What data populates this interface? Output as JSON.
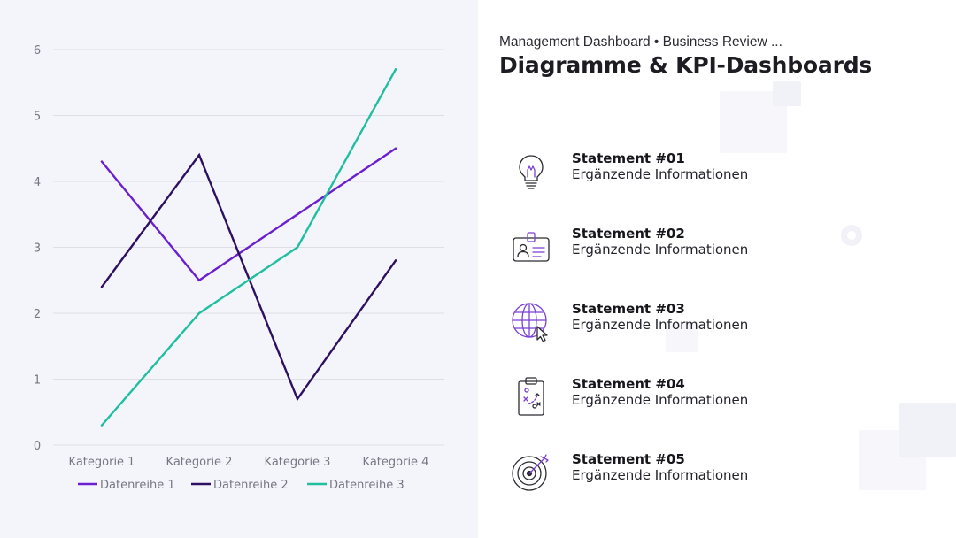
{
  "header": {
    "subtitle": "Management Dashboard • Business Review ...",
    "title": "Diagramme & KPI-Dashboards"
  },
  "statements": [
    {
      "title": "Statement #01",
      "description": "Ergänzende Informationen",
      "icon": "lightbulb-icon"
    },
    {
      "title": "Statement #02",
      "description": "Ergänzende Informationen",
      "icon": "id-card-icon"
    },
    {
      "title": "Statement #03",
      "description": "Ergänzende Informationen",
      "icon": "globe-cursor-icon"
    },
    {
      "title": "Statement #04",
      "description": "Ergänzende Informationen",
      "icon": "clipboard-strategy-icon"
    },
    {
      "title": "Statement #05",
      "description": "Ergänzende Informationen",
      "icon": "target-icon"
    }
  ],
  "colors": {
    "series1": "#6a1fd0",
    "series2": "#2e1060",
    "series3": "#1fbf9f",
    "left_panel_bg": "#f4f4fb",
    "icon_accent": "#7a3fd6",
    "icon_stroke": "#2a2a32"
  },
  "chart_data": {
    "type": "line",
    "categories": [
      "Kategorie 1",
      "Kategorie 2",
      "Kategorie 3",
      "Kategorie 4"
    ],
    "series": [
      {
        "name": "Datenreihe 1",
        "values": [
          4.3,
          2.5,
          3.5,
          4.5
        ]
      },
      {
        "name": "Datenreihe 2",
        "values": [
          2.4,
          4.4,
          0.7,
          2.8
        ]
      },
      {
        "name": "Datenreihe 3",
        "values": [
          0.3,
          2.0,
          3.0,
          5.7
        ]
      }
    ],
    "yticks": [
      "0",
      "1",
      "2",
      "3",
      "4",
      "5",
      "6"
    ],
    "ylim": [
      0,
      6
    ],
    "grid": true,
    "legend_position": "bottom"
  }
}
